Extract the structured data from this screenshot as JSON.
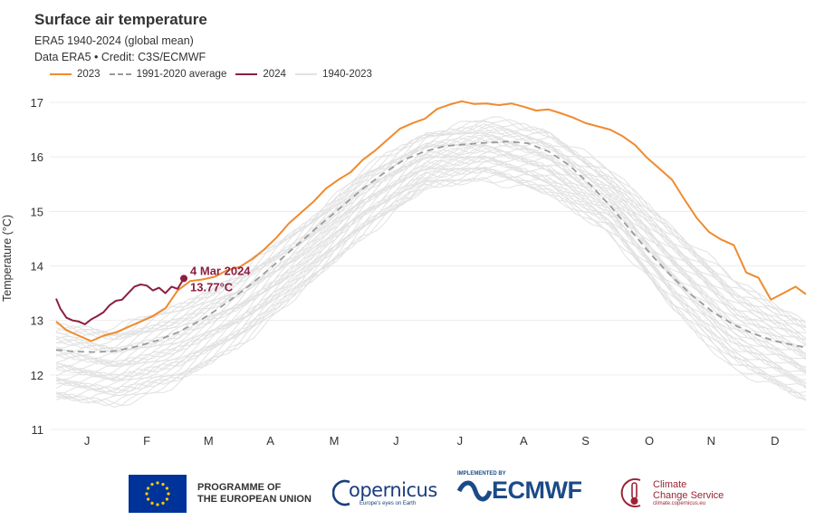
{
  "chart_data": {
    "type": "line",
    "title": "Surface air temperature",
    "subtitle": "ERA5 1940-2024 (global mean)",
    "credit": "Data ERA5 • Credit: C3S/ECMWF",
    "xlabel": "",
    "ylabel": "Temperature (°C)",
    "ylim": [
      11,
      17.3
    ],
    "yticks": [
      11,
      12,
      13,
      14,
      15,
      16,
      17
    ],
    "month_labels": [
      "J",
      "F",
      "M",
      "A",
      "M",
      "J",
      "J",
      "A",
      "S",
      "O",
      "N",
      "D"
    ],
    "legend": {
      "s2023": "2023",
      "avg": "1991-2020 average",
      "s2024": "2024",
      "hist": "1940-2023"
    },
    "legend_placement": "top-left",
    "grid": "horizontal",
    "annotation": {
      "date": "4 Mar 2024",
      "value": "13.77°C",
      "x_day": 63,
      "y": 13.77
    },
    "series": [
      {
        "name": "2023",
        "color": "#f08a2e",
        "points": [
          [
            1,
            12.98
          ],
          [
            6,
            12.82
          ],
          [
            12,
            12.72
          ],
          [
            18,
            12.62
          ],
          [
            24,
            12.72
          ],
          [
            30,
            12.78
          ],
          [
            36,
            12.88
          ],
          [
            42,
            12.98
          ],
          [
            48,
            13.08
          ],
          [
            54,
            13.22
          ],
          [
            60,
            13.55
          ],
          [
            66,
            13.72
          ],
          [
            72,
            13.75
          ],
          [
            78,
            13.8
          ],
          [
            84,
            13.92
          ],
          [
            90,
            13.98
          ],
          [
            96,
            14.12
          ],
          [
            102,
            14.3
          ],
          [
            108,
            14.52
          ],
          [
            114,
            14.78
          ],
          [
            120,
            14.98
          ],
          [
            126,
            15.18
          ],
          [
            132,
            15.42
          ],
          [
            138,
            15.58
          ],
          [
            144,
            15.72
          ],
          [
            150,
            15.95
          ],
          [
            156,
            16.12
          ],
          [
            162,
            16.32
          ],
          [
            168,
            16.52
          ],
          [
            174,
            16.62
          ],
          [
            180,
            16.7
          ],
          [
            186,
            16.88
          ],
          [
            192,
            16.96
          ],
          [
            198,
            17.02
          ],
          [
            204,
            16.97
          ],
          [
            210,
            16.98
          ],
          [
            216,
            16.95
          ],
          [
            222,
            16.98
          ],
          [
            228,
            16.92
          ],
          [
            234,
            16.85
          ],
          [
            240,
            16.87
          ],
          [
            246,
            16.8
          ],
          [
            252,
            16.72
          ],
          [
            258,
            16.62
          ],
          [
            264,
            16.56
          ],
          [
            270,
            16.5
          ],
          [
            276,
            16.38
          ],
          [
            282,
            16.22
          ],
          [
            288,
            15.98
          ],
          [
            294,
            15.78
          ],
          [
            300,
            15.58
          ],
          [
            306,
            15.22
          ],
          [
            312,
            14.88
          ],
          [
            318,
            14.62
          ],
          [
            324,
            14.48
          ],
          [
            330,
            14.38
          ],
          [
            336,
            13.88
          ],
          [
            342,
            13.78
          ],
          [
            348,
            13.38
          ],
          [
            354,
            13.5
          ],
          [
            360,
            13.62
          ],
          [
            365,
            13.48
          ]
        ]
      },
      {
        "name": "1991-2020 average",
        "color": "#9a9a9a",
        "points": [
          [
            1,
            12.46
          ],
          [
            10,
            12.43
          ],
          [
            20,
            12.42
          ],
          [
            30,
            12.44
          ],
          [
            40,
            12.52
          ],
          [
            50,
            12.63
          ],
          [
            60,
            12.78
          ],
          [
            70,
            12.98
          ],
          [
            80,
            13.22
          ],
          [
            90,
            13.5
          ],
          [
            100,
            13.8
          ],
          [
            110,
            14.12
          ],
          [
            120,
            14.45
          ],
          [
            130,
            14.78
          ],
          [
            140,
            15.1
          ],
          [
            150,
            15.42
          ],
          [
            160,
            15.7
          ],
          [
            170,
            15.95
          ],
          [
            180,
            16.1
          ],
          [
            190,
            16.2
          ],
          [
            200,
            16.23
          ],
          [
            210,
            16.26
          ],
          [
            220,
            16.28
          ],
          [
            230,
            16.25
          ],
          [
            240,
            16.1
          ],
          [
            250,
            15.85
          ],
          [
            260,
            15.5
          ],
          [
            270,
            15.1
          ],
          [
            280,
            14.65
          ],
          [
            290,
            14.2
          ],
          [
            300,
            13.8
          ],
          [
            310,
            13.45
          ],
          [
            320,
            13.15
          ],
          [
            330,
            12.92
          ],
          [
            340,
            12.75
          ],
          [
            350,
            12.62
          ],
          [
            365,
            12.5
          ]
        ]
      },
      {
        "name": "2024",
        "color": "#8b1f3f",
        "points": [
          [
            1,
            13.4
          ],
          [
            3,
            13.22
          ],
          [
            6,
            13.05
          ],
          [
            9,
            13.0
          ],
          [
            12,
            12.98
          ],
          [
            15,
            12.93
          ],
          [
            18,
            13.02
          ],
          [
            21,
            13.08
          ],
          [
            24,
            13.15
          ],
          [
            27,
            13.28
          ],
          [
            30,
            13.36
          ],
          [
            33,
            13.38
          ],
          [
            36,
            13.5
          ],
          [
            39,
            13.62
          ],
          [
            42,
            13.66
          ],
          [
            45,
            13.64
          ],
          [
            48,
            13.55
          ],
          [
            51,
            13.6
          ],
          [
            54,
            13.5
          ],
          [
            57,
            13.62
          ],
          [
            60,
            13.58
          ],
          [
            63,
            13.77
          ]
        ]
      }
    ],
    "historical_band": {
      "name": "1940-2023",
      "color": "#e2e2e2",
      "points": [
        [
          1,
          11.5,
          12.95
        ],
        [
          30,
          11.45,
          12.85
        ],
        [
          60,
          11.8,
          13.3
        ],
        [
          90,
          12.55,
          13.9
        ],
        [
          120,
          13.5,
          14.75
        ],
        [
          150,
          14.55,
          15.75
        ],
        [
          180,
          15.4,
          16.45
        ],
        [
          210,
          15.6,
          16.7
        ],
        [
          240,
          15.3,
          16.5
        ],
        [
          270,
          14.6,
          15.75
        ],
        [
          300,
          13.2,
          14.75
        ],
        [
          330,
          12.1,
          13.75
        ],
        [
          365,
          11.5,
          13.0
        ]
      ]
    }
  },
  "logos": {
    "eu_line1": "PROGRAMME OF",
    "eu_line2": "THE EUROPEAN UNION",
    "copernicus": "opernicus",
    "copernicus_sub": "Europe's eyes on Earth",
    "impl": "IMPLEMENTED BY",
    "ecmwf": "ECMWF",
    "ccs_line1": "Climate",
    "ccs_line2": "Change Service",
    "ccs_sub": "climate.copernicus.eu"
  },
  "colors": {
    "eu_flag": "#003399",
    "eu_stars": "#ffcc00",
    "copernicus": "#1a3e7e",
    "ecmwf": "#1b4b87",
    "ccs": "#9b2335"
  }
}
